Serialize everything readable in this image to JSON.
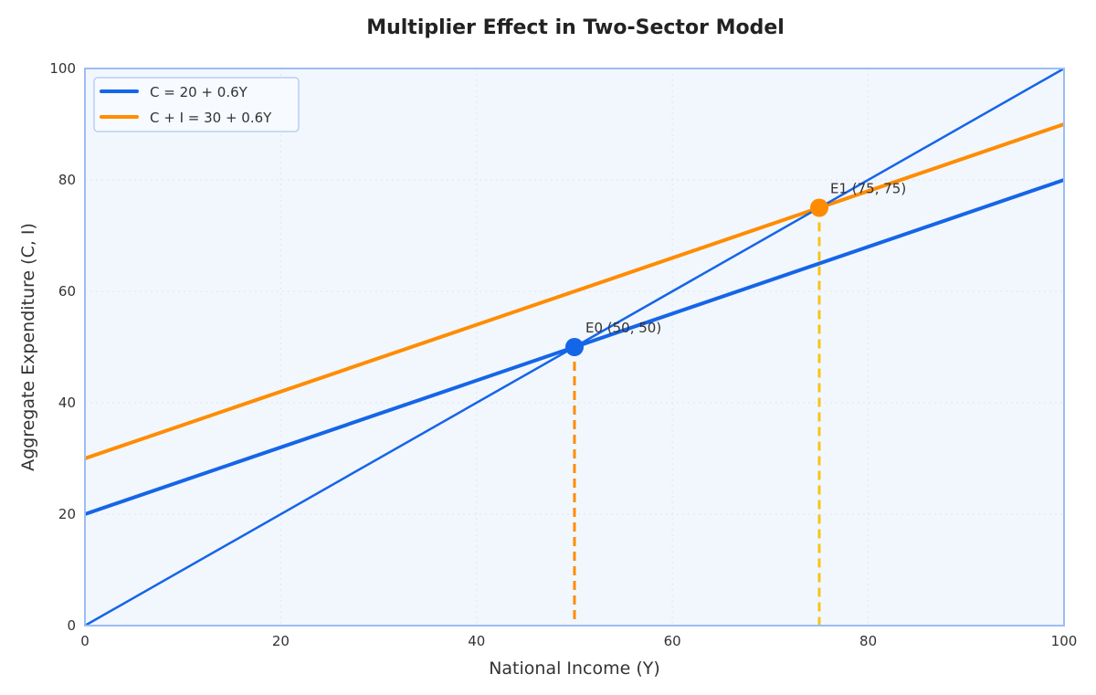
{
  "chart_data": {
    "type": "line",
    "title": "Multiplier Effect in Two-Sector Model",
    "xlabel": "National Income (Y)",
    "ylabel": "Aggregate Expenditure (C, I)",
    "xlim": [
      0,
      100
    ],
    "ylim": [
      0,
      100
    ],
    "xticks": [
      0,
      20,
      40,
      60,
      80,
      100
    ],
    "yticks": [
      0,
      20,
      40,
      60,
      80,
      100
    ],
    "grid": true,
    "legend_placement": "top-left",
    "series": [
      {
        "name": "C = 20 + 0.6Y",
        "x": [
          0,
          100
        ],
        "y": [
          20,
          80
        ],
        "color": "#1565e8"
      },
      {
        "name": "C + I = 30 + 0.6Y",
        "x": [
          0,
          100
        ],
        "y": [
          30,
          90
        ],
        "color": "#ff8c00"
      },
      {
        "x": [
          0,
          100
        ],
        "y": [
          0,
          100
        ],
        "color": "#1565e8"
      }
    ],
    "points": [
      {
        "label": "E0 (50, 50)",
        "x": 50,
        "y": 50,
        "color": "#1565e8",
        "drop_color": "#ff8c00"
      },
      {
        "label": "E1 (75, 75)",
        "x": 75,
        "y": 75,
        "color": "#ff8c00",
        "drop_color": "#f5c518"
      }
    ],
    "colors": {
      "plot_background": "#f2f7fd",
      "frame": "#9dbdf5"
    }
  }
}
